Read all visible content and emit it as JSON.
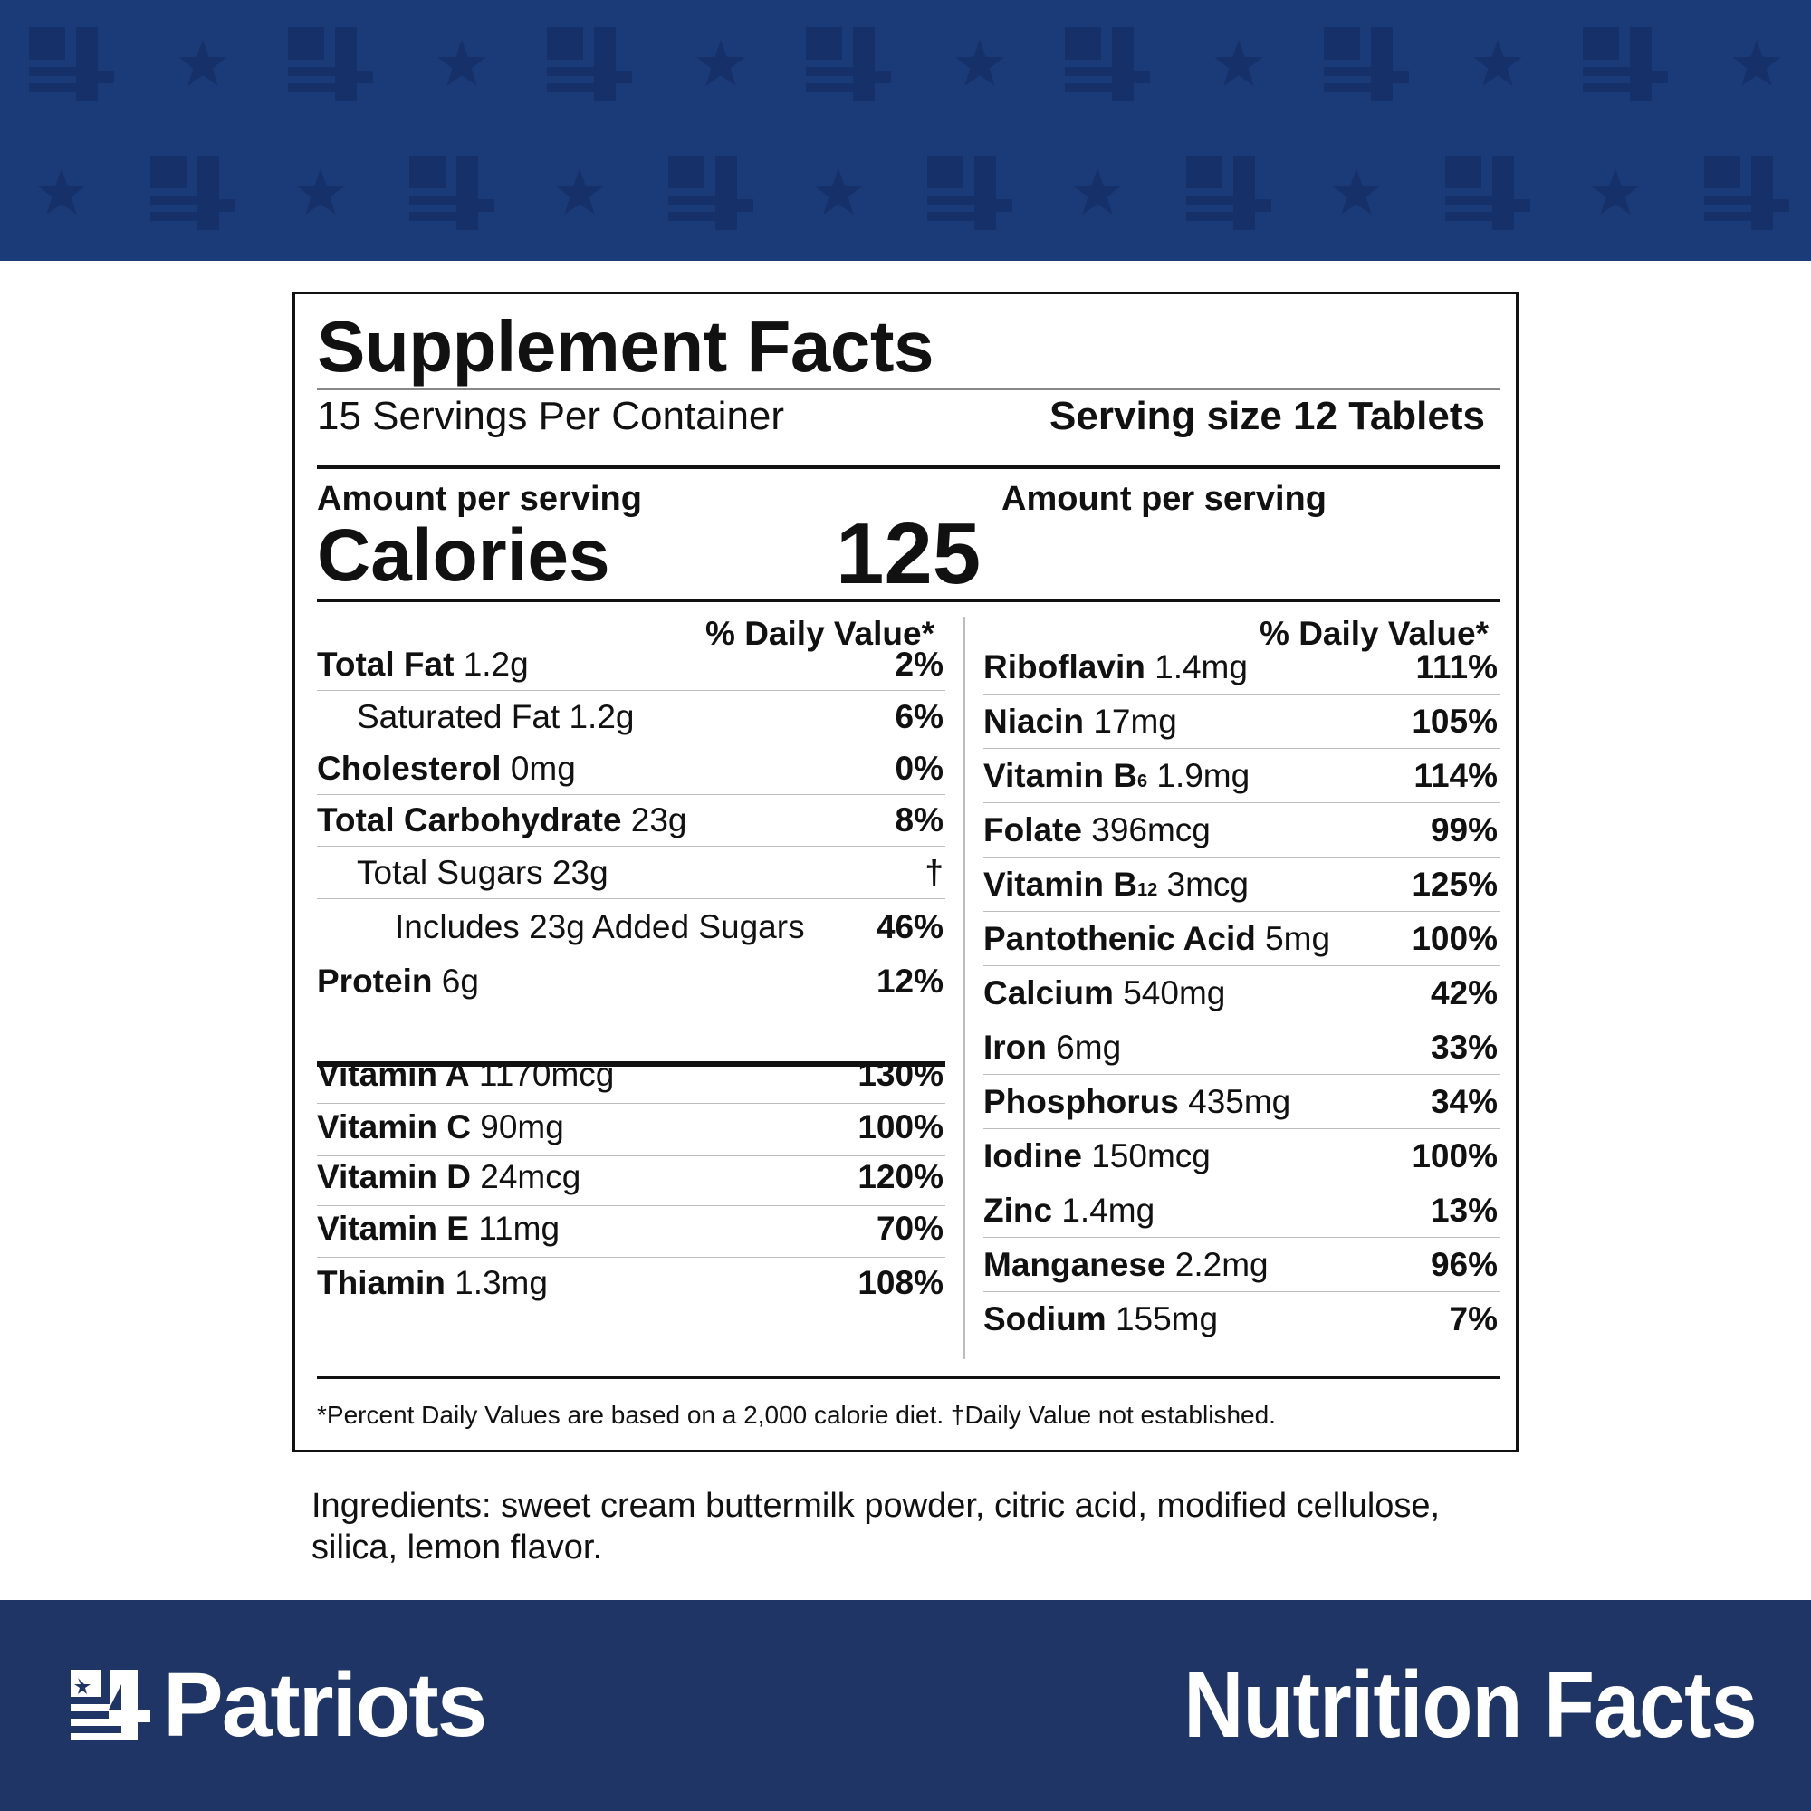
{
  "panel": {
    "title": "Supplement Facts",
    "servings_per_container": "15 Servings Per Container",
    "serving_size": "Serving size 12 Tablets",
    "amount_per_serving_left": "Amount per serving",
    "amount_per_serving_right": "Amount per serving",
    "calories_label": "Calories",
    "calories_value": "125",
    "dv_header_left": "% Daily Value*",
    "dv_header_right": "% Daily Value*",
    "left_rows": [
      {
        "name": "Total Fat",
        "amount": " 1.2g",
        "pct": "2%"
      },
      {
        "name": "",
        "amount": "Saturated Fat 1.2g",
        "pct": "6%"
      },
      {
        "name": "Cholesterol",
        "amount": " 0mg",
        "pct": "0%"
      },
      {
        "name": "Total Carbohydrate",
        "amount": " 23g",
        "pct": "8%"
      },
      {
        "name": "",
        "amount": "Total Sugars 23g",
        "pct": "†"
      },
      {
        "name": "",
        "amount": "Includes 23g Added Sugars",
        "pct": "46%"
      },
      {
        "name": "Protein",
        "amount": " 6g",
        "pct": "12%"
      },
      {
        "name": "Vitamin A",
        "amount": " 1170mcg",
        "pct": "130%"
      },
      {
        "name": "Vitamin C",
        "amount": " 90mg",
        "pct": "100%"
      },
      {
        "name": "Vitamin D",
        "amount": " 24mcg",
        "pct": "120%"
      },
      {
        "name": "Vitamin E",
        "amount": " 11mg",
        "pct": "70%"
      },
      {
        "name": "Thiamin",
        "amount": " 1.3mg",
        "pct": "108%"
      }
    ],
    "right_rows": [
      {
        "name": "Riboflavin",
        "sub": "",
        "amount": " 1.4mg",
        "pct": "111%"
      },
      {
        "name": "Niacin",
        "sub": "",
        "amount": " 17mg",
        "pct": "105%"
      },
      {
        "name": "Vitamin B",
        "sub": "6",
        "amount": " 1.9mg",
        "pct": "114%"
      },
      {
        "name": "Folate",
        "sub": "",
        "amount": " 396mcg",
        "pct": "99%"
      },
      {
        "name": "Vitamin B",
        "sub": "12",
        "amount": " 3mcg",
        "pct": "125%"
      },
      {
        "name": "Pantothenic Acid",
        "sub": "",
        "amount": " 5mg",
        "pct": "100%"
      },
      {
        "name": "Calcium",
        "sub": "",
        "amount": " 540mg",
        "pct": "42%"
      },
      {
        "name": "Iron",
        "sub": "",
        "amount": " 6mg",
        "pct": "33%"
      },
      {
        "name": "Phosphorus",
        "sub": "",
        "amount": " 435mg",
        "pct": "34%"
      },
      {
        "name": "Iodine",
        "sub": "",
        "amount": " 150mcg",
        "pct": "100%"
      },
      {
        "name": "Zinc",
        "sub": "",
        "amount": " 1.4mg",
        "pct": "13%"
      },
      {
        "name": "Manganese",
        "sub": "",
        "amount": " 2.2mg",
        "pct": "96%"
      },
      {
        "name": "Sodium",
        "sub": "",
        "amount": " 155mg",
        "pct": "7%"
      }
    ],
    "footnote": "*Percent Daily Values are based on a 2,000 calorie diet. †Daily Value not established."
  },
  "ingredients": "Ingredients: sweet cream buttermilk powder, citric acid, modified cellulose, silica, lemon flavor.",
  "brand": {
    "name": "Patriots",
    "logo_glyph": "4"
  },
  "footer_title": "Nutrition Facts",
  "colors": {
    "banner_top": "#1b3a78",
    "banner_bottom": "#1f3565",
    "pattern": "#16306a"
  },
  "icons": [
    "flag-4-logo-icon",
    "star-icon"
  ]
}
